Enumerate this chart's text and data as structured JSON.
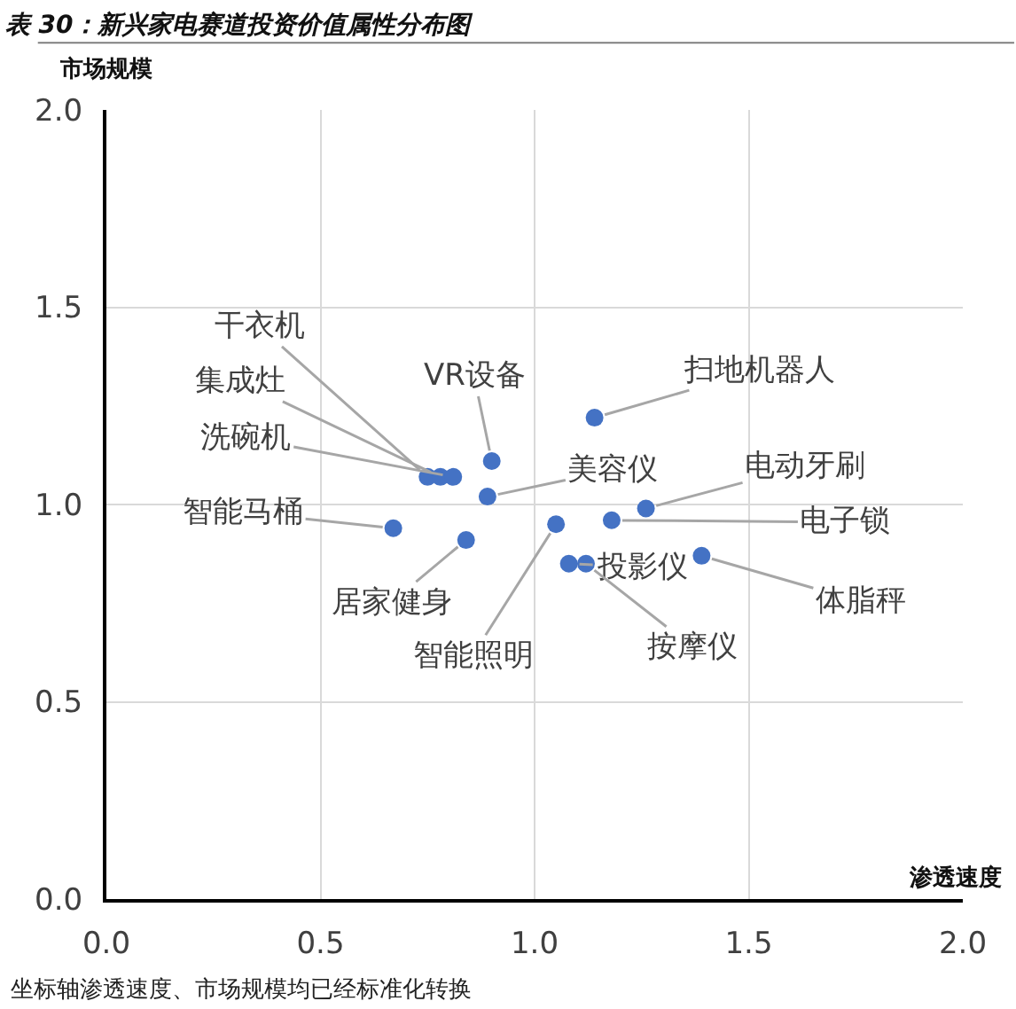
{
  "chart_data": {
    "type": "scatter",
    "title": "表 30：新兴家电赛道投资价值属性分布图",
    "xlabel": "渗透速度",
    "ylabel": "市场规模",
    "x": [
      0.75,
      0.78,
      0.81,
      0.9,
      1.14,
      0.89,
      1.26,
      1.18,
      0.67,
      0.84,
      1.05,
      1.08,
      1.12,
      1.39
    ],
    "series": [
      {
        "color": "#4472c4",
        "values": [
          1.07,
          1.07,
          1.07,
          1.11,
          1.22,
          1.02,
          0.99,
          0.96,
          0.94,
          0.91,
          0.95,
          0.85,
          0.85,
          0.87
        ]
      }
    ],
    "marker": "circle",
    "xlim": [
      0,
      2
    ],
    "ylim": [
      0,
      2
    ],
    "xticks": [
      {
        "value": 0,
        "label": "0.0"
      },
      0.5,
      {
        "value": 1,
        "label": "1.0"
      },
      1.5,
      {
        "value": 2,
        "label": "2.0"
      }
    ],
    "yticks": [
      {
        "value": 0,
        "label": "0.0"
      },
      0.5,
      {
        "value": 1,
        "label": "1.0"
      },
      1.5,
      {
        "value": 2,
        "label": "2.0"
      }
    ],
    "grid": true,
    "annotations": [
      {
        "text": "干衣机",
        "x": 0.75,
        "y": 1.07
      },
      {
        "text": "集成灶",
        "x": 0.78,
        "y": 1.07
      },
      {
        "text": "洗碗机",
        "x": 0.81,
        "y": 1.07
      },
      {
        "text": "VR设备",
        "x": 0.9,
        "y": 1.11
      },
      {
        "text": "扫地机器人",
        "x": 1.14,
        "y": 1.22
      },
      {
        "text": "美容仪",
        "x": 0.89,
        "y": 1.02
      },
      {
        "text": "电动牙刷",
        "x": 1.26,
        "y": 0.99
      },
      {
        "text": "电子锁",
        "x": 1.18,
        "y": 0.96
      },
      {
        "text": "智能马桶",
        "x": 0.67,
        "y": 0.94
      },
      {
        "text": "居家健身",
        "x": 0.84,
        "y": 0.91
      },
      {
        "text": "智能照明",
        "x": 1.05,
        "y": 0.95
      },
      {
        "text": "投影仪",
        "x": 1.08,
        "y": 0.85
      },
      {
        "text": "按摩仪",
        "x": 1.12,
        "y": 0.85
      },
      {
        "text": "体脂秤",
        "x": 1.39,
        "y": 0.87
      },
      "坐标轴渗透速度、市场规模均已经标准化转换"
    ]
  }
}
